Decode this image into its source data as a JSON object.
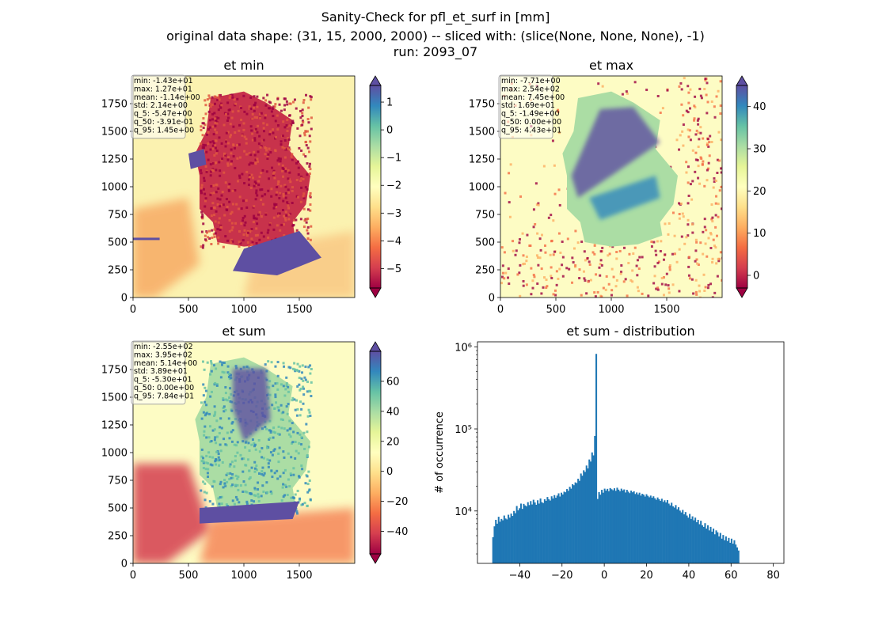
{
  "figure": {
    "title_line1": "Sanity-Check for pfl_et_surf in [mm]",
    "title_line2": "original data shape: (31, 15, 2000, 2000) -- sliced with: (slice(None, None, None), -1)",
    "title_line3": "run: 2093_07"
  },
  "colormap": {
    "name": "Spectral",
    "stops": [
      "#9e0142",
      "#d53e4f",
      "#f46d43",
      "#fdae61",
      "#fee08b",
      "#ffffbf",
      "#e6f598",
      "#abdda4",
      "#66c2a5",
      "#3288bd",
      "#5e4fa2"
    ]
  },
  "chart_data": [
    {
      "type": "heatmap",
      "title": "et min",
      "xlim": [
        0,
        2000
      ],
      "ylim": [
        0,
        2000
      ],
      "xticks": [
        0,
        500,
        1000,
        1500
      ],
      "yticks": [
        0,
        250,
        500,
        750,
        1000,
        1250,
        1500,
        1750
      ],
      "colorbar": {
        "vmin": -5.7,
        "vmax": 1.6,
        "ticks": [
          -5,
          -4,
          -3,
          -2,
          -1,
          0,
          1
        ],
        "tick_labels": [
          "−5",
          "−4",
          "−3",
          "−2",
          "−1",
          "0",
          "1"
        ],
        "extend": "both"
      },
      "stats": [
        "min: -1.43e+01",
        "max: 1.27e+01",
        "mean: -1.14e+00",
        "std: 2.14e+00",
        "q_5: -5.47e+00",
        "q_50: -3.91e-01",
        "q_95: 1.45e+00"
      ]
    },
    {
      "type": "heatmap",
      "title": "et max",
      "xlim": [
        0,
        2000
      ],
      "ylim": [
        0,
        2000
      ],
      "xticks": [
        0,
        500,
        1000,
        1500
      ],
      "yticks": [
        0,
        250,
        500,
        750,
        1000,
        1250,
        1500,
        1750
      ],
      "colorbar": {
        "vmin": -3,
        "vmax": 45,
        "ticks": [
          0,
          10,
          20,
          30,
          40
        ],
        "tick_labels": [
          "0",
          "10",
          "20",
          "30",
          "40"
        ],
        "extend": "both"
      },
      "stats": [
        "min: -7.71e+00",
        "max: 2.54e+02",
        "mean: 7.45e+00",
        "std: 1.69e+01",
        "q_5: -1.49e+00",
        "q_50: 0.00e+00",
        "q_95: 4.43e+01"
      ]
    },
    {
      "type": "heatmap",
      "title": "et sum",
      "xlim": [
        0,
        2000
      ],
      "ylim": [
        0,
        2000
      ],
      "xticks": [
        0,
        500,
        1000,
        1500
      ],
      "yticks": [
        0,
        250,
        500,
        750,
        1000,
        1250,
        1500,
        1750
      ],
      "colorbar": {
        "vmin": -55,
        "vmax": 80,
        "ticks": [
          -40,
          -20,
          0,
          20,
          40,
          60
        ],
        "tick_labels": [
          "−40",
          "−20",
          "0",
          "20",
          "40",
          "60"
        ],
        "extend": "both"
      },
      "stats": [
        "min: -2.55e+02",
        "max: 3.95e+02",
        "mean: 5.14e+00",
        "std: 3.89e+01",
        "q_5: -5.30e+01",
        "q_50: 0.00e+00",
        "q_95: 7.84e+01"
      ]
    },
    {
      "type": "bar",
      "title": "et sum - distribution",
      "ylabel": "# of occurrence",
      "xlabel": "",
      "yscale": "log",
      "xlim": [
        -60,
        85
      ],
      "ylim": [
        2300,
        1150000
      ],
      "xticks": [
        -40,
        -20,
        0,
        20,
        40,
        60,
        80
      ],
      "xtick_labels": [
        "−40",
        "−20",
        "0",
        "20",
        "40",
        "60",
        "80"
      ],
      "yticks": [
        10000,
        100000,
        1000000
      ],
      "ytick_labels": [
        "10⁴",
        "10⁵",
        "10⁶"
      ],
      "color": "#1f77b4",
      "bin_start": -53,
      "bin_width": 0.66,
      "values": [
        4800,
        6500,
        7800,
        7000,
        8500,
        7400,
        8000,
        7700,
        8800,
        8100,
        7900,
        9000,
        8300,
        9300,
        8700,
        10000,
        9400,
        11500,
        10200,
        10800,
        12300,
        10600,
        12200,
        11700,
        11400,
        12800,
        11800,
        13200,
        12000,
        13700,
        12700,
        11900,
        13500,
        12300,
        14200,
        12800,
        12500,
        13900,
        13300,
        14800,
        13900,
        13400,
        15100,
        14200,
        15600,
        14500,
        15400,
        16400,
        15000,
        16700,
        15900,
        17200,
        16900,
        18500,
        17600,
        19700,
        18700,
        21200,
        20600,
        22300,
        21900,
        24700,
        23300,
        28600,
        26900,
        31300,
        29900,
        35800,
        33000,
        42400,
        40000,
        51700,
        47600,
        82000,
        820000,
        14000,
        17000,
        15800,
        18100,
        16700,
        18700,
        17700,
        18600,
        17400,
        19000,
        18400,
        17900,
        18900,
        17600,
        19200,
        18200,
        17400,
        18700,
        17800,
        18300,
        16800,
        18100,
        17200,
        16500,
        17700,
        16900,
        17400,
        16100,
        16800,
        15900,
        16700,
        15400,
        16200,
        15800,
        15000,
        16000,
        15300,
        14700,
        15400,
        14500,
        15100,
        14300,
        13700,
        14600,
        13900,
        13300,
        14100,
        12900,
        13500,
        12700,
        13600,
        12300,
        11700,
        12600,
        11400,
        11000,
        11800,
        10500,
        11100,
        10100,
        9600,
        10300,
        9100,
        9700,
        8800,
        8300,
        9200,
        8000,
        8600,
        7700,
        8300,
        7300,
        7800,
        6900,
        7600,
        6700,
        6400,
        7100,
        6100,
        6700,
        5800,
        6400,
        5600,
        6100,
        5200,
        5800,
        5500,
        4900,
        5400,
        4600,
        5100,
        4400,
        4900,
        4300,
        4700,
        4100,
        4600,
        4000,
        4400,
        3900,
        3600,
        3300
      ]
    }
  ]
}
